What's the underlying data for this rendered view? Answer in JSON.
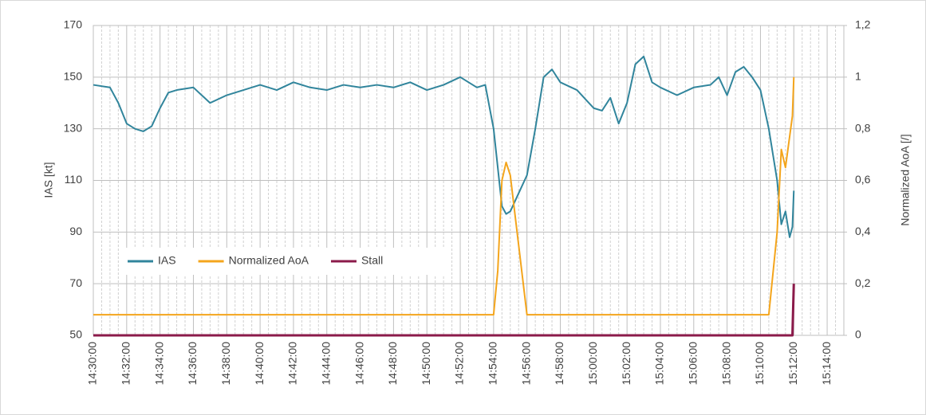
{
  "chart_data": {
    "type": "line",
    "y_label": "IAS [kt]",
    "y2_label": "Normalized AoA [/]",
    "x": [
      "14:30:00",
      "14:31:00",
      "14:31:30",
      "14:32:00",
      "14:32:30",
      "14:33:00",
      "14:33:30",
      "14:34:00",
      "14:34:30",
      "14:35:00",
      "14:36:00",
      "14:37:00",
      "14:38:00",
      "14:39:00",
      "14:40:00",
      "14:41:00",
      "14:42:00",
      "14:43:00",
      "14:44:00",
      "14:45:00",
      "14:46:00",
      "14:47:00",
      "14:48:00",
      "14:49:00",
      "14:50:00",
      "14:51:00",
      "14:52:00",
      "14:53:00",
      "14:53:30",
      "14:54:00",
      "14:54:15",
      "14:54:30",
      "14:54:45",
      "14:55:00",
      "14:55:30",
      "14:56:00",
      "14:56:30",
      "14:57:00",
      "14:57:30",
      "14:58:00",
      "14:59:00",
      "15:00:00",
      "15:00:30",
      "15:01:00",
      "15:01:30",
      "15:02:00",
      "15:02:30",
      "15:03:00",
      "15:03:30",
      "15:04:00",
      "15:05:00",
      "15:06:00",
      "15:07:00",
      "15:07:30",
      "15:08:00",
      "15:08:30",
      "15:09:00",
      "15:09:30",
      "15:10:00",
      "15:10:30",
      "15:11:00",
      "15:11:15",
      "15:11:30",
      "15:11:45",
      "15:11:55",
      "15:12:00"
    ],
    "series": [
      {
        "name": "IAS",
        "color": "#31859c",
        "values": [
          147,
          146,
          140,
          132,
          130,
          129,
          131,
          138,
          144,
          145,
          146,
          140,
          143,
          145,
          147,
          145,
          148,
          146,
          145,
          147,
          146,
          147,
          146,
          148,
          145,
          147,
          150,
          146,
          147,
          130,
          115,
          100,
          97,
          98,
          105,
          112,
          130,
          150,
          153,
          148,
          145,
          138,
          137,
          142,
          132,
          140,
          155,
          158,
          148,
          146,
          143,
          146,
          147,
          150,
          143,
          152,
          154,
          150,
          145,
          130,
          110,
          93,
          98,
          88,
          92,
          106
        ]
      },
      {
        "name": "Normalized AoA",
        "color": "#f4a51c",
        "axis": "y2",
        "values": [
          0.08,
          0.08,
          0.08,
          0.08,
          0.08,
          0.08,
          0.08,
          0.08,
          0.08,
          0.08,
          0.08,
          0.08,
          0.08,
          0.08,
          0.08,
          0.08,
          0.08,
          0.08,
          0.08,
          0.08,
          0.08,
          0.08,
          0.08,
          0.08,
          0.08,
          0.08,
          0.08,
          0.08,
          0.08,
          0.08,
          0.25,
          0.6,
          0.67,
          0.62,
          0.35,
          0.08,
          0.08,
          0.08,
          0.08,
          0.08,
          0.08,
          0.08,
          0.08,
          0.08,
          0.08,
          0.08,
          0.08,
          0.08,
          0.08,
          0.08,
          0.08,
          0.08,
          0.08,
          0.08,
          0.08,
          0.08,
          0.08,
          0.08,
          0.08,
          0.08,
          0.4,
          0.72,
          0.65,
          0.77,
          0.85,
          1
        ]
      },
      {
        "name": "Stall",
        "color": "#8b1a4a",
        "axis": "y2",
        "values": [
          0,
          0,
          0,
          0,
          0,
          0,
          0,
          0,
          0,
          0,
          0,
          0,
          0,
          0,
          0,
          0,
          0,
          0,
          0,
          0,
          0,
          0,
          0,
          0,
          0,
          0,
          0,
          0,
          0,
          0,
          0,
          0,
          0,
          0,
          0,
          0,
          0,
          0,
          0,
          0,
          0,
          0,
          0,
          0,
          0,
          0,
          0,
          0,
          0,
          0,
          0,
          0,
          0,
          0,
          0,
          0,
          0,
          0,
          0,
          0,
          0,
          0,
          0,
          0,
          0,
          0.2
        ]
      }
    ],
    "xlim": [
      "14:30:00",
      "15:15:00"
    ],
    "xticks": [
      "14:30:00",
      "14:32:00",
      "14:34:00",
      "14:36:00",
      "14:38:00",
      "14:40:00",
      "14:42:00",
      "14:44:00",
      "14:46:00",
      "14:48:00",
      "14:50:00",
      "14:52:00",
      "14:54:00",
      "14:56:00",
      "14:58:00",
      "15:00:00",
      "15:02:00",
      "15:04:00",
      "15:06:00",
      "15:08:00",
      "15:10:00",
      "15:12:00",
      "15:14:00"
    ],
    "ylim": [
      50,
      170
    ],
    "yticks": [
      50,
      70,
      90,
      110,
      130,
      150,
      170
    ],
    "y2lim": [
      0,
      1.2
    ],
    "y2ticks": [
      0,
      {
        "value": 0.2,
        "label": "0,2"
      },
      {
        "value": 0.4,
        "label": "0,4"
      },
      {
        "value": 0.6,
        "label": "0,6"
      },
      {
        "value": 0.8,
        "label": "0,8"
      },
      1,
      {
        "value": 1.2,
        "label": "1,2"
      }
    ],
    "grid": true,
    "legend": "lower left"
  }
}
